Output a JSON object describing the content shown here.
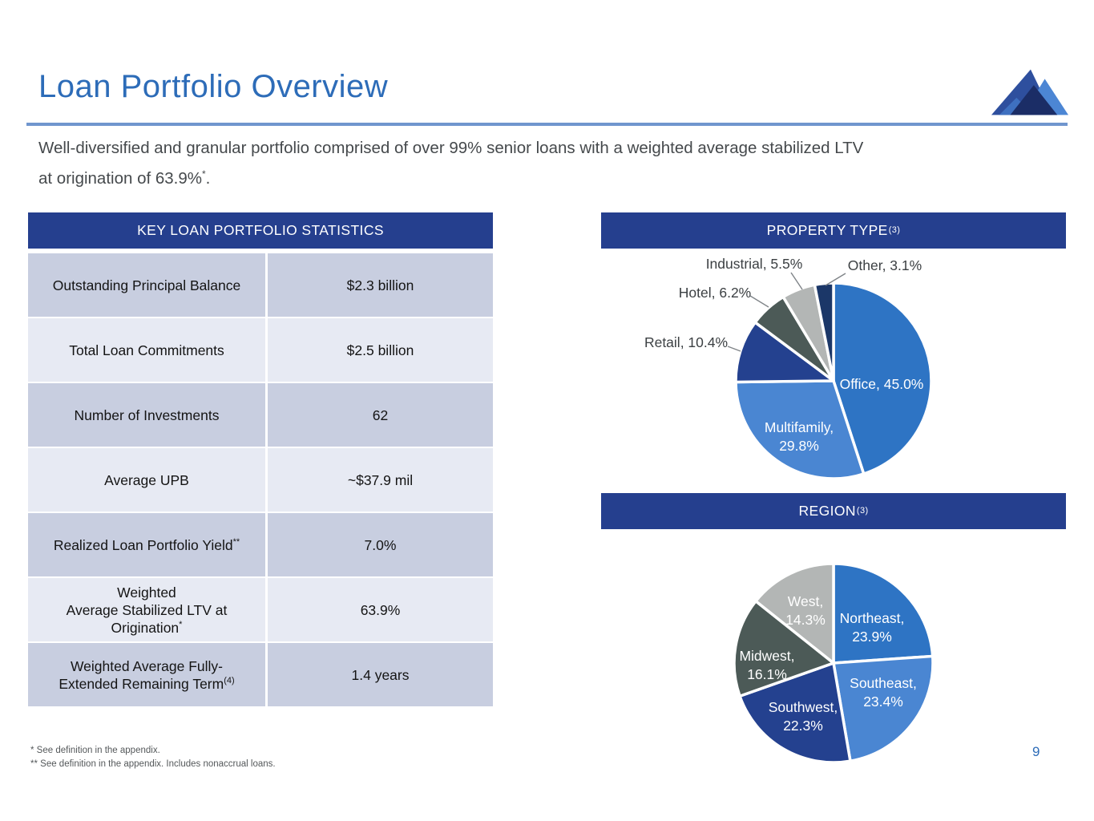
{
  "slide": {
    "title": "Loan Portfolio Overview",
    "subtitle_line1": "Well-diversified and granular portfolio comprised of over 99% senior loans with a weighted average stabilized LTV",
    "subtitle_line2": "at origination of 63.9%",
    "subtitle_line2_sup": "*",
    "subtitle_line2_end": ".",
    "page_number": "9",
    "footnotes": {
      "line1": "* See definition in the appendix.",
      "line2": "** See definition in the appendix. Includes nonaccrual loans."
    }
  },
  "theme": {
    "accent_blue": "#2D6CB8",
    "divider_blue": "#7096CE",
    "header_bar_navy": "#253F8E",
    "row_shade_dark": "#C8CEE0",
    "row_shade_light": "#E7EAF3"
  },
  "table": {
    "header": "KEY LOAN PORTFOLIO STATISTICS",
    "rows": [
      {
        "label_lines": [
          "Outstanding Principal Balance"
        ],
        "sup": "",
        "value": "$2.3 billion"
      },
      {
        "label_lines": [
          "Total Loan Commitments"
        ],
        "sup": "",
        "value": "$2.5 billion"
      },
      {
        "label_lines": [
          "Number of Investments"
        ],
        "sup": "",
        "value": "62"
      },
      {
        "label_lines": [
          "Average UPB"
        ],
        "sup": "",
        "value": "~$37.9 mil"
      },
      {
        "label_lines": [
          "Realized Loan Portfolio Yield"
        ],
        "sup": "**",
        "value": "7.0%"
      },
      {
        "label_lines": [
          "Weighted",
          "Average Stabilized LTV at",
          "Origination"
        ],
        "sup": "*",
        "value": "63.9%"
      },
      {
        "label_lines": [
          "Weighted Average Fully-",
          "Extended Remaining Term"
        ],
        "sup": "(4)",
        "value": "1.4 years"
      }
    ]
  },
  "chart_data": [
    {
      "id": "property_type",
      "type": "pie",
      "title": "PROPERTY TYPE",
      "title_sup": "(3)",
      "start_angle_deg": 0,
      "direction": "clockwise",
      "legend_position": "none",
      "slices": [
        {
          "name": "Office",
          "value": 45.0,
          "color": "#2E74C4",
          "label_placement": "inside"
        },
        {
          "name": "Multifamily",
          "value": 29.8,
          "color": "#4A86D2",
          "label_placement": "inside"
        },
        {
          "name": "Retail",
          "value": 10.4,
          "color": "#24418F",
          "label_placement": "outside"
        },
        {
          "name": "Hotel",
          "value": 6.2,
          "color": "#4C5A57",
          "label_placement": "outside"
        },
        {
          "name": "Industrial",
          "value": 5.5,
          "color": "#B3B6B5",
          "label_placement": "outside"
        },
        {
          "name": "Other",
          "value": 3.1,
          "color": "#1B3768",
          "label_placement": "outside"
        }
      ]
    },
    {
      "id": "region",
      "type": "pie",
      "title": "REGION",
      "title_sup": "(3)",
      "start_angle_deg": 0,
      "direction": "clockwise",
      "legend_position": "none",
      "slices": [
        {
          "name": "Northeast",
          "value": 23.9,
          "color": "#2E74C4",
          "label_placement": "inside"
        },
        {
          "name": "Southeast",
          "value": 23.4,
          "color": "#4A86D2",
          "label_placement": "inside"
        },
        {
          "name": "Southwest",
          "value": 22.3,
          "color": "#24418F",
          "label_placement": "inside"
        },
        {
          "name": "Midwest",
          "value": 16.1,
          "color": "#4C5A57",
          "label_placement": "inside"
        },
        {
          "name": "West",
          "value": 14.3,
          "color": "#B3B6B5",
          "label_placement": "inside"
        }
      ]
    }
  ]
}
